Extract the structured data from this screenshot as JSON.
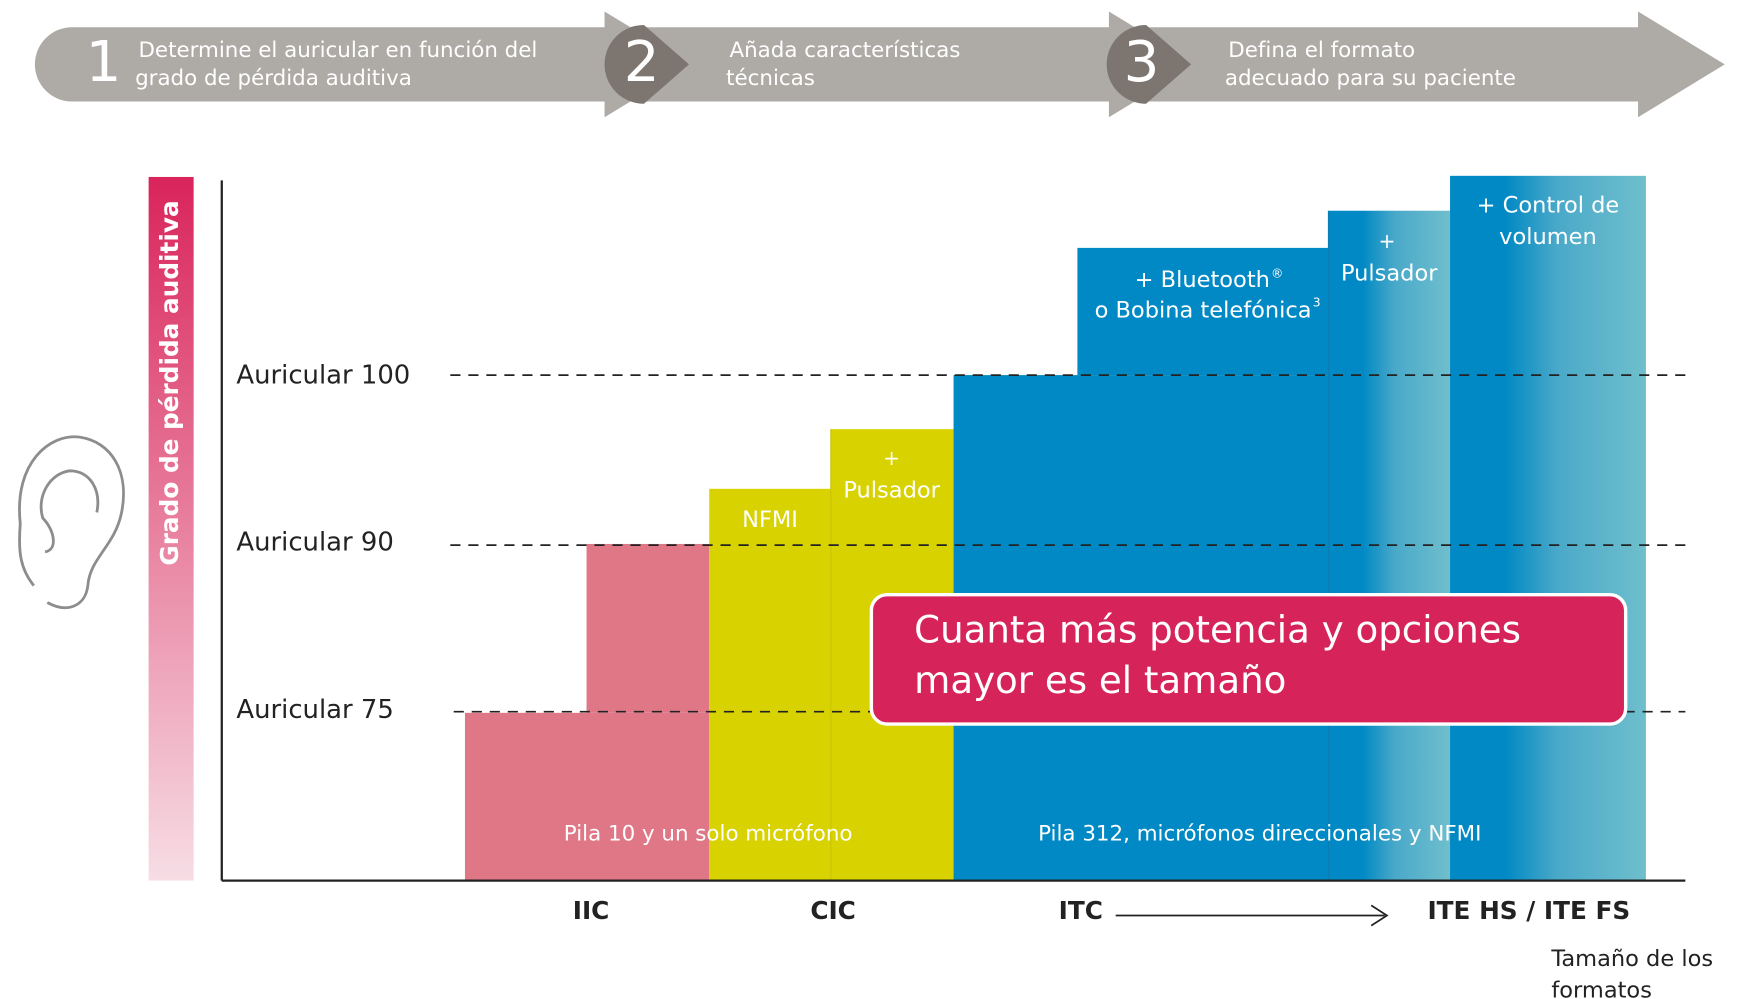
{
  "steps": [
    {
      "number": "1",
      "lines": [
        "Determine el auricular en función del",
        "grado de pérdida auditiva"
      ]
    },
    {
      "number": "2",
      "lines": [
        "Añada características",
        "técnicas"
      ]
    },
    {
      "number": "3",
      "lines": [
        "Defina el formato",
        "adecuado para su paciente"
      ]
    }
  ],
  "y_axis_label": "Grado de pérdida auditiva",
  "levels": [
    "Auricular 100",
    "Auricular 90",
    "Auricular 75"
  ],
  "features": {
    "nfmi": "NFMI",
    "pulsador_cic": [
      "+",
      "Pulsador"
    ],
    "bluetooth": {
      "line1": "+ Bluetooth",
      "line1_sup": "®",
      "line2": "o Bobina telefónica",
      "line2_sup": "3"
    },
    "pulsador_ite": [
      "+",
      "Pulsador"
    ],
    "volumen": [
      "+ Control de",
      "volumen"
    ]
  },
  "callout": [
    "Cuanta más potencia y opciones",
    "mayor es el tamaño"
  ],
  "battery_notes": [
    "Pila 10 y un solo micrófono",
    "Pila 312, micrófonos direccionales y NFMI"
  ],
  "formats": [
    "IIC",
    "CIC",
    "ITC",
    "ITE HS / ITE FS"
  ],
  "x_axis_label": [
    "Tamaño de los",
    "formatos"
  ]
}
